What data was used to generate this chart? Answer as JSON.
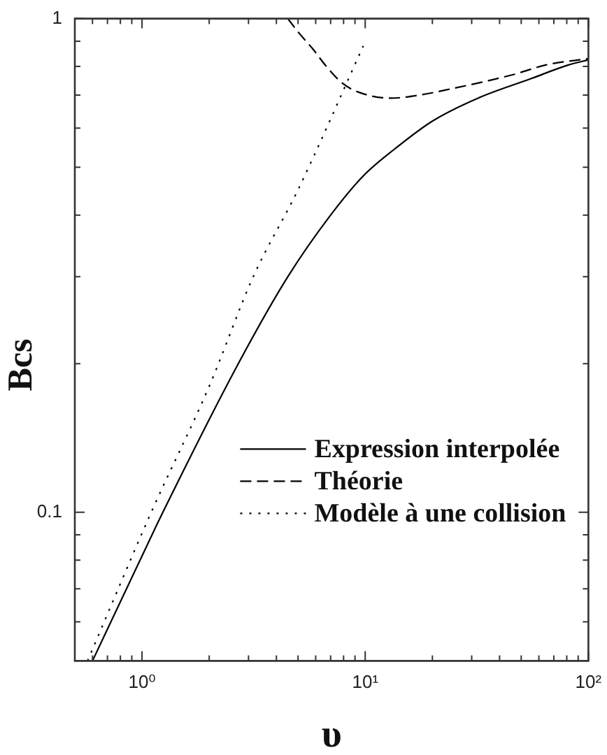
{
  "chart_data": {
    "type": "line",
    "xlabel": "υ",
    "ylabel": "Bcs",
    "log": "xy",
    "legend": "bottom right",
    "xlim": [
      0.5,
      100
    ],
    "ylim": [
      0.05,
      1
    ],
    "xticks": [
      {
        "value": 0.6,
        "label": null
      },
      {
        "value": 0.7,
        "label": null
      },
      {
        "value": 0.8,
        "label": null
      },
      {
        "value": 0.9,
        "label": null
      },
      {
        "value": 1,
        "label": "10⁰"
      },
      {
        "value": 2,
        "label": null
      },
      {
        "value": 3,
        "label": null
      },
      {
        "value": 4,
        "label": null
      },
      {
        "value": 5,
        "label": null
      },
      {
        "value": 6,
        "label": null
      },
      {
        "value": 7,
        "label": null
      },
      {
        "value": 8,
        "label": null
      },
      {
        "value": 9,
        "label": null
      },
      {
        "value": 10,
        "label": "10¹"
      },
      {
        "value": 20,
        "label": null
      },
      {
        "value": 30,
        "label": null
      },
      {
        "value": 40,
        "label": null
      },
      {
        "value": 50,
        "label": null
      },
      {
        "value": 60,
        "label": null
      },
      {
        "value": 70,
        "label": null
      },
      {
        "value": 80,
        "label": null
      },
      {
        "value": 90,
        "label": null
      },
      {
        "value": 100,
        "label": "10²"
      }
    ],
    "yticks": [
      {
        "value": 0.06,
        "label": null
      },
      {
        "value": 0.07,
        "label": null
      },
      {
        "value": 0.08,
        "label": null
      },
      {
        "value": 0.09,
        "label": null
      },
      0.1,
      {
        "value": 0.2,
        "label": null
      },
      {
        "value": 0.3,
        "label": null
      },
      {
        "value": 0.4,
        "label": null
      },
      {
        "value": 0.5,
        "label": null
      },
      {
        "value": 0.6,
        "label": null
      },
      {
        "value": 0.7,
        "label": null
      },
      {
        "value": 0.8,
        "label": null
      },
      {
        "value": 0.9,
        "label": null
      },
      1
    ],
    "series": [
      {
        "name": "Expression interpolée",
        "color": "#000000",
        "line_style": "solid",
        "x": [
          0.6,
          0.98,
          1.24,
          2.7,
          4.5,
          7,
          9.8,
          13.6,
          20,
          32,
          55,
          81,
          100
        ],
        "values": [
          0.05,
          0.08,
          0.1,
          0.2,
          0.3,
          0.4,
          0.48,
          0.545,
          0.62,
          0.69,
          0.755,
          0.805,
          0.825
        ]
      },
      {
        "name": "Théorie",
        "color": "#000000",
        "line_style": "dashed",
        "x": [
          4.5,
          5,
          5.8,
          6.7,
          7.9,
          9.3,
          13,
          17.5,
          24,
          46,
          64,
          100
        ],
        "values": [
          1,
          0.94,
          0.87,
          0.8,
          0.74,
          0.71,
          0.69,
          0.7,
          0.72,
          0.77,
          0.805,
          0.83
        ]
      },
      {
        "name": "Modèle à une collision",
        "color": "#000000",
        "line_style": "dotted",
        "x": [
          0.57,
          1.1,
          2,
          3.15,
          5,
          9.8
        ],
        "values": [
          0.05,
          0.1,
          0.18,
          0.3,
          0.45,
          0.88
        ]
      }
    ]
  }
}
